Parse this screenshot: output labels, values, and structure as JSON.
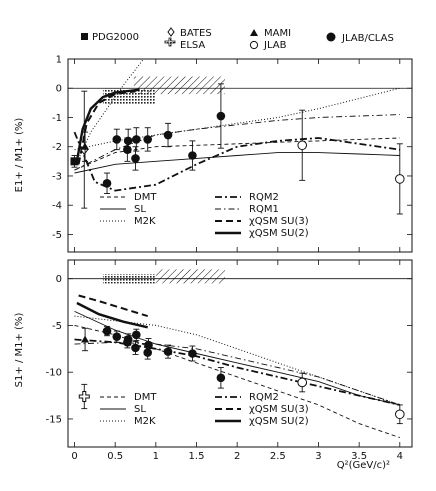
{
  "legend_top": {
    "items": [
      {
        "label": "PDG2000",
        "marker": "filled-square"
      },
      {
        "label": "BATES",
        "marker": "open-diamond"
      },
      {
        "label": "ELSA",
        "marker": "hatched-cross"
      },
      {
        "label": "MAMI",
        "marker": "filled-triangle"
      },
      {
        "label": "JLAB",
        "marker": "open-circle"
      },
      {
        "label": "JLAB/CLAS",
        "marker": "filled-circle"
      }
    ]
  },
  "x_axis": {
    "label": "Q²(GeV/c)²",
    "ticks": [
      "0",
      "0.5",
      "1",
      "1.5",
      "2",
      "2.5",
      "3",
      "3.5",
      "4"
    ]
  },
  "chart_data": [
    {
      "type": "scatter",
      "name": "E1+/M1+",
      "ylabel": "E1+ / M1+ (%)",
      "xlim": [
        -0.08,
        4.15
      ],
      "ylim": [
        -5.6,
        1.0
      ],
      "y_ticks": [
        "1",
        "0",
        "-1",
        "-2",
        "-3",
        "-4",
        "-5"
      ],
      "hatched_band": {
        "x": [
          0.73,
          1.85
        ],
        "y": [
          -0.2,
          0.4
        ]
      },
      "elsa_band": {
        "x": [
          0.35,
          1.0
        ],
        "y": [
          -0.55,
          0.0
        ]
      },
      "points": [
        {
          "set": "PDG2000",
          "x": 0.0,
          "y": -2.5,
          "err": 0.2
        },
        {
          "set": "BATES",
          "x": 0.12,
          "y": -2.1,
          "err": 2.0
        },
        {
          "set": "MAMI",
          "x": 0.13,
          "y": -2.0,
          "err": 0.5
        },
        {
          "set": "JLAB/CLAS",
          "x": 0.4,
          "y": -3.25,
          "err": 0.35
        },
        {
          "set": "JLAB/CLAS",
          "x": 0.52,
          "y": -1.75,
          "err": 0.35
        },
        {
          "set": "JLAB/CLAS",
          "x": 0.65,
          "y": -2.1,
          "err": 0.4
        },
        {
          "set": "JLAB/CLAS",
          "x": 0.66,
          "y": -1.8,
          "err": 0.4
        },
        {
          "set": "JLAB/CLAS",
          "x": 0.75,
          "y": -2.4,
          "err": 0.4
        },
        {
          "set": "JLAB/CLAS",
          "x": 0.76,
          "y": -1.75,
          "err": 0.4
        },
        {
          "set": "JLAB/CLAS",
          "x": 0.9,
          "y": -1.75,
          "err": 0.4
        },
        {
          "set": "JLAB/CLAS",
          "x": 1.15,
          "y": -1.6,
          "err": 0.4
        },
        {
          "set": "JLAB/CLAS",
          "x": 1.45,
          "y": -2.3,
          "err": 0.5
        },
        {
          "set": "JLAB/CLAS",
          "x": 1.8,
          "y": -0.95,
          "err": 1.1
        },
        {
          "set": "JLAB",
          "x": 2.8,
          "y": -1.95,
          "err": 1.2
        },
        {
          "set": "JLAB",
          "x": 4.0,
          "y": -3.1,
          "err": 1.2
        }
      ],
      "curves": [
        {
          "name": "DMT",
          "style": "dashed-thin",
          "x": [
            0,
            0.5,
            1,
            1.5,
            2,
            2.5,
            3,
            3.5,
            4
          ],
          "y": [
            -2.8,
            -2.2,
            -2.0,
            -1.95,
            -1.9,
            -1.85,
            -1.8,
            -1.75,
            -1.7
          ]
        },
        {
          "name": "SL",
          "style": "solid-thin",
          "x": [
            0,
            0.5,
            1,
            1.5,
            2,
            2.5,
            3,
            3.5,
            4
          ],
          "y": [
            -2.9,
            -2.6,
            -2.5,
            -2.4,
            -2.3,
            -2.2,
            -2.2,
            -2.25,
            -2.3
          ]
        },
        {
          "name": "M2K",
          "style": "dotted",
          "x": [
            0,
            0.5,
            1,
            1.5,
            2,
            2.5,
            3,
            3.5,
            4
          ],
          "y": [
            -2.1,
            -1.8,
            -1.6,
            -1.4,
            -1.2,
            -1.0,
            -0.7,
            -0.35,
            0.0
          ]
        },
        {
          "name": "RQM2",
          "style": "dashdot-heavy",
          "x": [
            0,
            0.25,
            0.5,
            1,
            1.5,
            2,
            2.5,
            3,
            3.5,
            4
          ],
          "y": [
            -1.5,
            -3.2,
            -3.5,
            -3.3,
            -2.6,
            -2.0,
            -1.8,
            -1.7,
            -1.9,
            -2.1
          ]
        },
        {
          "name": "RQM1",
          "style": "dashdot-thin",
          "x": [
            0,
            0.5,
            1,
            1.5,
            2,
            2.5,
            3,
            3.5,
            4
          ],
          "y": [
            -2.8,
            -2.1,
            -1.6,
            -1.4,
            -1.25,
            -1.1,
            -1.0,
            -0.95,
            -0.9
          ]
        },
        {
          "name": "χQSM SU(3)",
          "style": "dashed-heavy",
          "x": [
            0.05,
            0.15,
            0.3,
            0.5,
            0.75
          ],
          "y": [
            -2.6,
            -1.2,
            -0.5,
            -0.2,
            -0.1
          ]
        },
        {
          "name": "χQSM SU(2)",
          "style": "solid-heavy",
          "x": [
            0.03,
            0.1,
            0.2,
            0.35,
            0.5,
            0.8
          ],
          "y": [
            -2.5,
            -1.4,
            -0.7,
            -0.3,
            -0.15,
            -0.05
          ]
        },
        {
          "name": "steep-dotted",
          "style": "dotted",
          "x": [
            0.02,
            0.2,
            0.4,
            0.6,
            0.85
          ],
          "y": [
            -2.6,
            -1.5,
            -0.7,
            0.1,
            1.0
          ]
        }
      ],
      "legend": {
        "left": [
          {
            "label": "DMT",
            "style": "dashed-thin"
          },
          {
            "label": "SL",
            "style": "solid-thin"
          },
          {
            "label": "M2K",
            "style": "dotted"
          }
        ],
        "right": [
          {
            "label": "RQM2",
            "style": "dashdot-heavy"
          },
          {
            "label": "RQM1",
            "style": "dashdot-thin"
          },
          {
            "label": "χQSM SU(3)",
            "style": "dashed-heavy"
          },
          {
            "label": "χQSM SU(2)",
            "style": "solid-heavy"
          }
        ]
      }
    },
    {
      "type": "scatter",
      "name": "S1+/M1+",
      "ylabel": "S1+ / M1+ (%)",
      "xlim": [
        -0.08,
        4.15
      ],
      "ylim": [
        -18.0,
        2.0
      ],
      "y_ticks": [
        "0",
        "-5",
        "-10",
        "-15"
      ],
      "hatched_band": {
        "x": [
          1.0,
          1.85
        ],
        "y": [
          -0.5,
          1.0
        ]
      },
      "elsa_band": {
        "x": [
          0.35,
          1.0
        ],
        "y": [
          -0.5,
          0.5
        ]
      },
      "points": [
        {
          "set": "ELSA",
          "x": 0.12,
          "y": -12.6,
          "err": 1.3
        },
        {
          "set": "MAMI",
          "x": 0.13,
          "y": -6.5,
          "err": 1.2
        },
        {
          "set": "JLAB/CLAS",
          "x": 0.4,
          "y": -5.6,
          "err": 0.5
        },
        {
          "set": "JLAB/CLAS",
          "x": 0.52,
          "y": -6.2,
          "err": 0.6
        },
        {
          "set": "JLAB/CLAS",
          "x": 0.65,
          "y": -6.8,
          "err": 0.6
        },
        {
          "set": "JLAB/CLAS",
          "x": 0.66,
          "y": -6.5,
          "err": 0.6
        },
        {
          "set": "JLAB/CLAS",
          "x": 0.75,
          "y": -7.4,
          "err": 0.7
        },
        {
          "set": "JLAB/CLAS",
          "x": 0.76,
          "y": -6.0,
          "err": 0.6
        },
        {
          "set": "JLAB/CLAS",
          "x": 0.9,
          "y": -7.9,
          "err": 0.7
        },
        {
          "set": "JLAB/CLAS",
          "x": 0.91,
          "y": -7.1,
          "err": 0.7
        },
        {
          "set": "JLAB/CLAS",
          "x": 1.15,
          "y": -7.8,
          "err": 0.7
        },
        {
          "set": "JLAB/CLAS",
          "x": 1.45,
          "y": -8.0,
          "err": 0.8
        },
        {
          "set": "JLAB/CLAS",
          "x": 1.8,
          "y": -10.6,
          "err": 1.1
        },
        {
          "set": "JLAB",
          "x": 2.8,
          "y": -11.1,
          "err": 1.0
        },
        {
          "set": "JLAB",
          "x": 4.0,
          "y": -14.5,
          "err": 1.0
        }
      ],
      "curves": [
        {
          "name": "DMT",
          "style": "dashed-thin",
          "x": [
            0,
            0.5,
            1,
            1.5,
            2,
            2.5,
            3,
            3.5,
            4
          ],
          "y": [
            -5.0,
            -6.0,
            -7.5,
            -9.0,
            -10.5,
            -12.0,
            -13.5,
            -15.5,
            -17.0
          ]
        },
        {
          "name": "SL",
          "style": "solid-thin",
          "x": [
            0,
            0.5,
            1,
            1.5,
            2,
            2.5,
            3,
            3.5,
            4
          ],
          "y": [
            -3.5,
            -5.5,
            -7.0,
            -8.0,
            -9.0,
            -10.0,
            -11.0,
            -12.5,
            -13.5
          ]
        },
        {
          "name": "M2K",
          "style": "dotted",
          "x": [
            0,
            0.5,
            1,
            1.5,
            2,
            2.5,
            3,
            3.5,
            4
          ],
          "y": [
            -4.0,
            -4.5,
            -5.0,
            -6.0,
            -7.5,
            -9.0,
            -10.5,
            -12.0,
            -13.5
          ]
        },
        {
          "name": "RQM2",
          "style": "dashdot-heavy",
          "x": [
            0,
            0.5,
            1,
            1.5,
            2,
            2.5,
            3,
            3.5,
            4
          ],
          "y": [
            -6.5,
            -6.8,
            -7.5,
            -8.3,
            -9.5,
            -10.5,
            -11.5,
            -12.5,
            -13.5
          ]
        },
        {
          "name": "RQM1",
          "style": "dashdot-thin",
          "x": [
            0,
            0.5,
            1,
            1.5,
            2,
            2.5,
            3,
            3.5,
            4
          ],
          "y": [
            -7.0,
            -6.8,
            -7.0,
            -7.5,
            -8.5,
            -9.5,
            -10.5,
            -12.0,
            -13.5
          ]
        },
        {
          "name": "χQSM SU(3)",
          "style": "dashed-heavy",
          "x": [
            0.05,
            0.3,
            0.6,
            0.9
          ],
          "y": [
            -1.8,
            -2.4,
            -3.2,
            -4.0
          ]
        },
        {
          "name": "χQSM SU(2)",
          "style": "solid-heavy",
          "x": [
            0.03,
            0.3,
            0.6,
            0.9
          ],
          "y": [
            -2.6,
            -3.8,
            -4.6,
            -5.2
          ]
        }
      ],
      "legend": {
        "left": [
          {
            "label": "DMT",
            "style": "dashed-thin"
          },
          {
            "label": "SL",
            "style": "solid-thin"
          },
          {
            "label": "M2K",
            "style": "dotted"
          }
        ],
        "right": [
          {
            "label": "RQM2",
            "style": "dashdot-heavy"
          },
          {
            "label": "χQSM SU(3)",
            "style": "dashed-heavy"
          },
          {
            "label": "χQSM SU(2)",
            "style": "solid-heavy"
          }
        ]
      }
    }
  ]
}
